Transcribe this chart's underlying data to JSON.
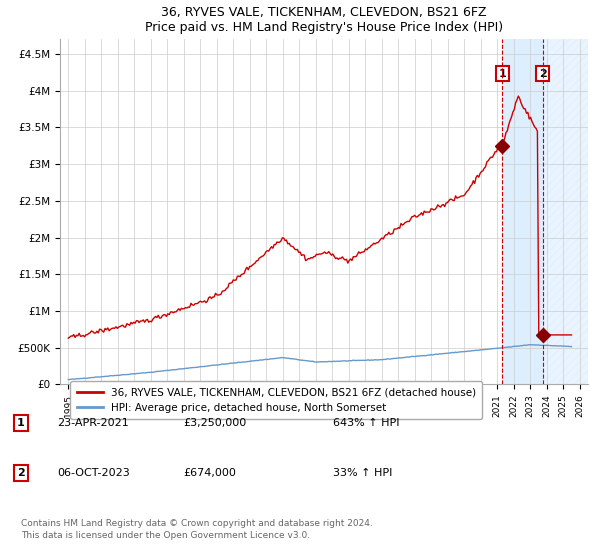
{
  "title": "36, RYVES VALE, TICKENHAM, CLEVEDON, BS21 6FZ",
  "subtitle": "Price paid vs. HM Land Registry's House Price Index (HPI)",
  "legend_line1": "36, RYVES VALE, TICKENHAM, CLEVEDON, BS21 6FZ (detached house)",
  "legend_line2": "HPI: Average price, detached house, North Somerset",
  "annotation1_label": "1",
  "annotation1_date": "23-APR-2021",
  "annotation1_price": "£3,250,000",
  "annotation1_hpi": "643% ↑ HPI",
  "annotation2_label": "2",
  "annotation2_date": "06-OCT-2023",
  "annotation2_price": "£674,000",
  "annotation2_hpi": "33% ↑ HPI",
  "footer": "Contains HM Land Registry data © Crown copyright and database right 2024.\nThis data is licensed under the Open Government Licence v3.0.",
  "hpi_color": "#6699cc",
  "price_color": "#cc0000",
  "marker_color": "#880000",
  "dashed_line_color": "#cc0000",
  "shaded_region_color": "#ddeeff",
  "annotation_box_color": "#cc0000",
  "ylim": [
    0,
    4700000
  ],
  "yticks": [
    0,
    500000,
    1000000,
    1500000,
    2000000,
    2500000,
    3000000,
    3500000,
    4000000,
    4500000
  ],
  "ytick_labels": [
    "£0",
    "£500K",
    "£1M",
    "£1.5M",
    "£2M",
    "£2.5M",
    "£3M",
    "£3.5M",
    "£4M",
    "£4.5M"
  ],
  "sale1_x": 2021.31,
  "sale1_y": 3250000,
  "sale2_x": 2023.76,
  "sale2_y": 674000,
  "xlim_start": 1994.5,
  "xlim_end": 2026.5
}
